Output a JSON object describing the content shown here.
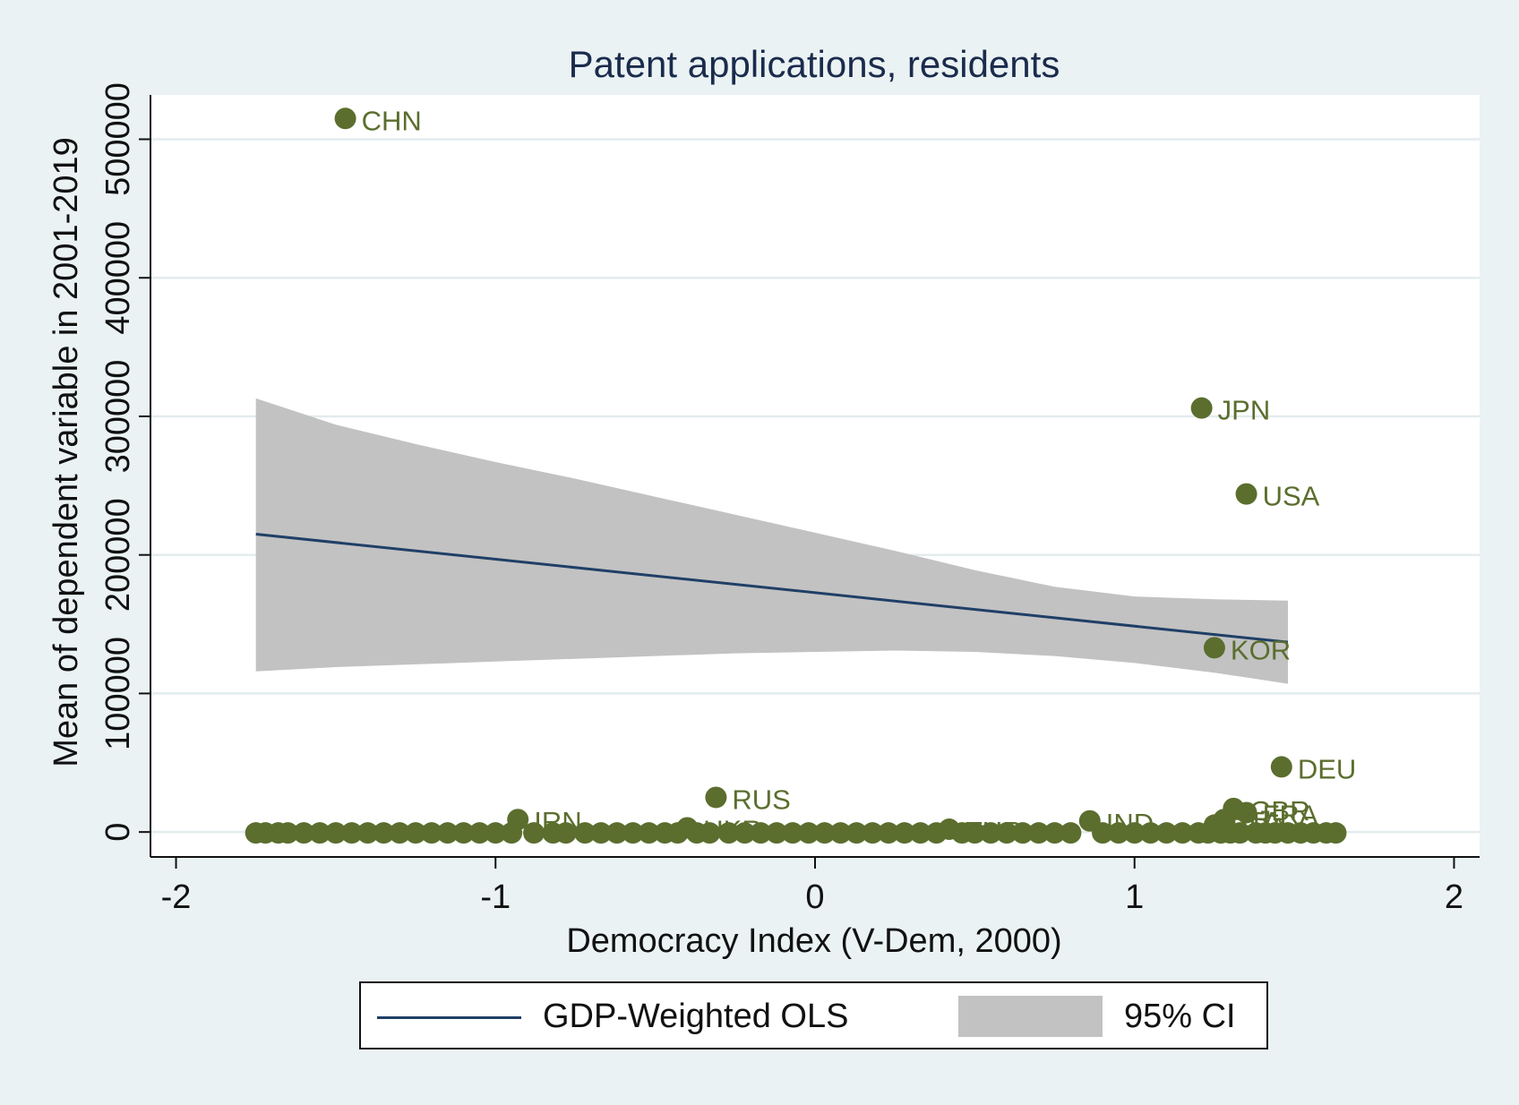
{
  "chart_data": {
    "type": "scatter",
    "title": "Patent applications, residents",
    "xlabel": "Democracy Index (V-Dem, 2000)",
    "ylabel": "Mean of dependent variable in 2001-2019",
    "xlim": [
      -2.08,
      2.08
    ],
    "ylim": [
      -18000,
      532000
    ],
    "xticks": [
      -2,
      -1,
      0,
      1,
      2
    ],
    "xtick_labels": [
      "-2",
      "-1",
      "0",
      "1",
      "2"
    ],
    "yticks": [
      0,
      100000,
      200000,
      300000,
      400000,
      500000
    ],
    "ytick_labels": [
      "0",
      "100000",
      "200000",
      "300000",
      "400000",
      "500000"
    ],
    "grid": true,
    "legend_position": "bottom",
    "colors": {
      "points": "#5b6e2e",
      "fit_line": "#1f3f66",
      "ci_band": "#c2c2c2",
      "plot_background": "#ffffff",
      "outer_background": "#eaf2f3",
      "grid": "#e3ecee",
      "title": "#1a2b4c"
    },
    "labeled_points": [
      {
        "label": "CHN",
        "x": -1.47,
        "y": 515000
      },
      {
        "label": "JPN",
        "x": 1.21,
        "y": 306000
      },
      {
        "label": "USA",
        "x": 1.35,
        "y": 244000
      },
      {
        "label": "KOR",
        "x": 1.25,
        "y": 133000
      },
      {
        "label": "DEU",
        "x": 1.46,
        "y": 47000
      },
      {
        "label": "RUS",
        "x": -0.31,
        "y": 25000
      },
      {
        "label": "IRN",
        "x": -0.93,
        "y": 9000
      },
      {
        "label": "IND",
        "x": 0.86,
        "y": 8000
      },
      {
        "label": "GBR",
        "x": 1.31,
        "y": 17000
      },
      {
        "label": "FRA",
        "x": 1.35,
        "y": 14000
      },
      {
        "label": "UKR",
        "x": -0.4,
        "y": 3000
      },
      {
        "label": "TUR",
        "x": 0.42,
        "y": 2000
      },
      {
        "label": "BRA",
        "x": 1.25,
        "y": 5000
      },
      {
        "label": "ITA",
        "x": 1.28,
        "y": 9000
      }
    ],
    "cluster_x": [
      -1.75,
      -1.72,
      -1.68,
      -1.65,
      -1.6,
      -1.55,
      -1.5,
      -1.45,
      -1.4,
      -1.35,
      -1.3,
      -1.25,
      -1.2,
      -1.15,
      -1.1,
      -1.05,
      -1.0,
      -0.95,
      -0.88,
      -0.82,
      -0.78,
      -0.72,
      -0.67,
      -0.62,
      -0.57,
      -0.52,
      -0.47,
      -0.43,
      -0.37,
      -0.33,
      -0.27,
      -0.22,
      -0.17,
      -0.12,
      -0.07,
      -0.02,
      0.03,
      0.08,
      0.13,
      0.18,
      0.23,
      0.28,
      0.33,
      0.38,
      0.46,
      0.5,
      0.55,
      0.6,
      0.65,
      0.7,
      0.75,
      0.8,
      0.9,
      0.95,
      1.0,
      1.05,
      1.1,
      1.15,
      1.2,
      1.23,
      1.27,
      1.3,
      1.33,
      1.38,
      1.41,
      1.44,
      1.48,
      1.52,
      1.56,
      1.6,
      1.63
    ],
    "fit_line": {
      "name": "GDP-Weighted OLS",
      "x": [
        -1.75,
        1.48
      ],
      "y": [
        215000,
        137000
      ]
    },
    "ci_band": {
      "name": "95% CI",
      "x": [
        -1.75,
        -1.5,
        -1.25,
        -1.0,
        -0.75,
        -0.5,
        -0.25,
        0.0,
        0.25,
        0.5,
        0.75,
        1.0,
        1.25,
        1.48
      ],
      "upper": [
        313000,
        294000,
        280000,
        267000,
        255000,
        242000,
        229000,
        216000,
        203000,
        189000,
        177000,
        170000,
        168000,
        167000
      ],
      "lower": [
        116000,
        119000,
        121000,
        123000,
        125000,
        127000,
        129000,
        130000,
        131000,
        130000,
        127000,
        122000,
        115000,
        107000
      ]
    },
    "legend": [
      "GDP-Weighted OLS",
      "95% CI"
    ]
  }
}
